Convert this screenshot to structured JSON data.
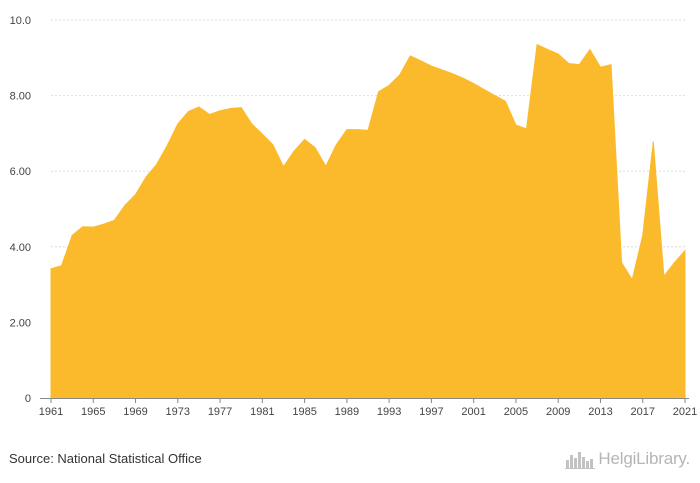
{
  "chart_data": {
    "type": "area",
    "title": "",
    "xlabel": "",
    "ylabel": "",
    "x": [
      1961,
      1962,
      1963,
      1964,
      1965,
      1966,
      1967,
      1968,
      1969,
      1970,
      1971,
      1972,
      1973,
      1974,
      1975,
      1976,
      1977,
      1978,
      1979,
      1980,
      1981,
      1982,
      1983,
      1984,
      1985,
      1986,
      1987,
      1988,
      1989,
      1990,
      1991,
      1992,
      1993,
      1994,
      1995,
      1996,
      1997,
      1998,
      1999,
      2000,
      2001,
      2002,
      2003,
      2004,
      2005,
      2006,
      2007,
      2008,
      2009,
      2010,
      2011,
      2012,
      2013,
      2014,
      2015,
      2016,
      2017,
      2018,
      2019,
      2020,
      2021
    ],
    "series": [
      {
        "values": [
          3.42,
          3.5,
          4.3,
          4.53,
          4.52,
          4.6,
          4.7,
          5.1,
          5.38,
          5.85,
          6.18,
          6.68,
          7.25,
          7.58,
          7.7,
          7.5,
          7.6,
          7.66,
          7.68,
          7.25,
          6.98,
          6.7,
          6.12,
          6.53,
          6.84,
          6.62,
          6.13,
          6.7,
          7.1,
          7.1,
          7.08,
          8.1,
          8.27,
          8.55,
          9.05,
          8.92,
          8.78,
          8.68,
          8.58,
          8.46,
          8.32,
          8.16,
          8.0,
          7.85,
          7.22,
          7.12,
          9.35,
          9.22,
          9.1,
          8.85,
          8.82,
          9.22,
          8.75,
          8.82,
          3.58,
          3.13,
          4.3,
          6.78,
          3.22,
          3.58,
          3.9
        ],
        "color": "#FBBA2B"
      }
    ],
    "xlim": [
      1961,
      2021
    ],
    "ylim": [
      0,
      10
    ],
    "x_ticks": [
      "1961",
      "1965",
      "1969",
      "1973",
      "1977",
      "1981",
      "1985",
      "1989",
      "1993",
      "1997",
      "2001",
      "2005",
      "2009",
      "2013",
      "2017",
      "2021"
    ],
    "y_ticks": [
      "0",
      "2.00",
      "4.00",
      "6.00",
      "8.00",
      "10.0"
    ],
    "grid": "horizontal dashed",
    "legend": "none"
  },
  "footer": {
    "source": "Source: National Statistical Office",
    "logo_text": "HelgiLibrary.",
    "logo_icon": "city-skyline-icon"
  },
  "colors": {
    "area": "#FBBA2B",
    "grid": "#dddddd",
    "axis": "#888888"
  }
}
